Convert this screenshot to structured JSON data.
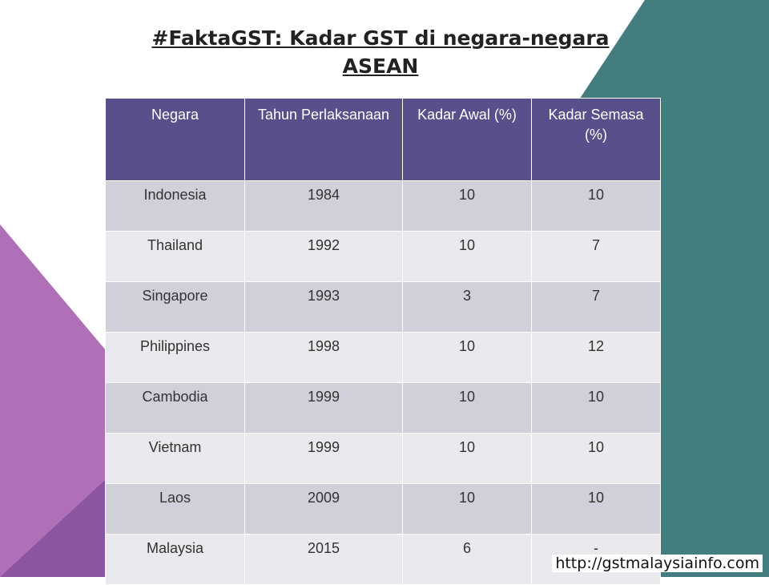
{
  "header": {
    "title": "#FaktaGST: Kadar GST di negara-negara ASEAN"
  },
  "table": {
    "columns": [
      "Negara",
      "Tahun Perlaksanaan",
      "Kadar Awal (%)",
      "Kadar Semasa (%)"
    ],
    "rows": [
      [
        "Indonesia",
        1984,
        10,
        10
      ],
      [
        "Thailand",
        1992,
        10,
        7
      ],
      [
        "Singapore",
        1993,
        3,
        7
      ],
      [
        "Philippines",
        1998,
        10,
        12
      ],
      [
        "Cambodia",
        1999,
        10,
        10
      ],
      [
        "Vietnam",
        1999,
        10,
        10
      ],
      [
        "Laos",
        2009,
        10,
        10
      ],
      [
        "Malaysia",
        2015,
        6,
        "-"
      ]
    ]
  },
  "footer": {
    "url": "http://gstmalaysiainfo.com"
  }
}
